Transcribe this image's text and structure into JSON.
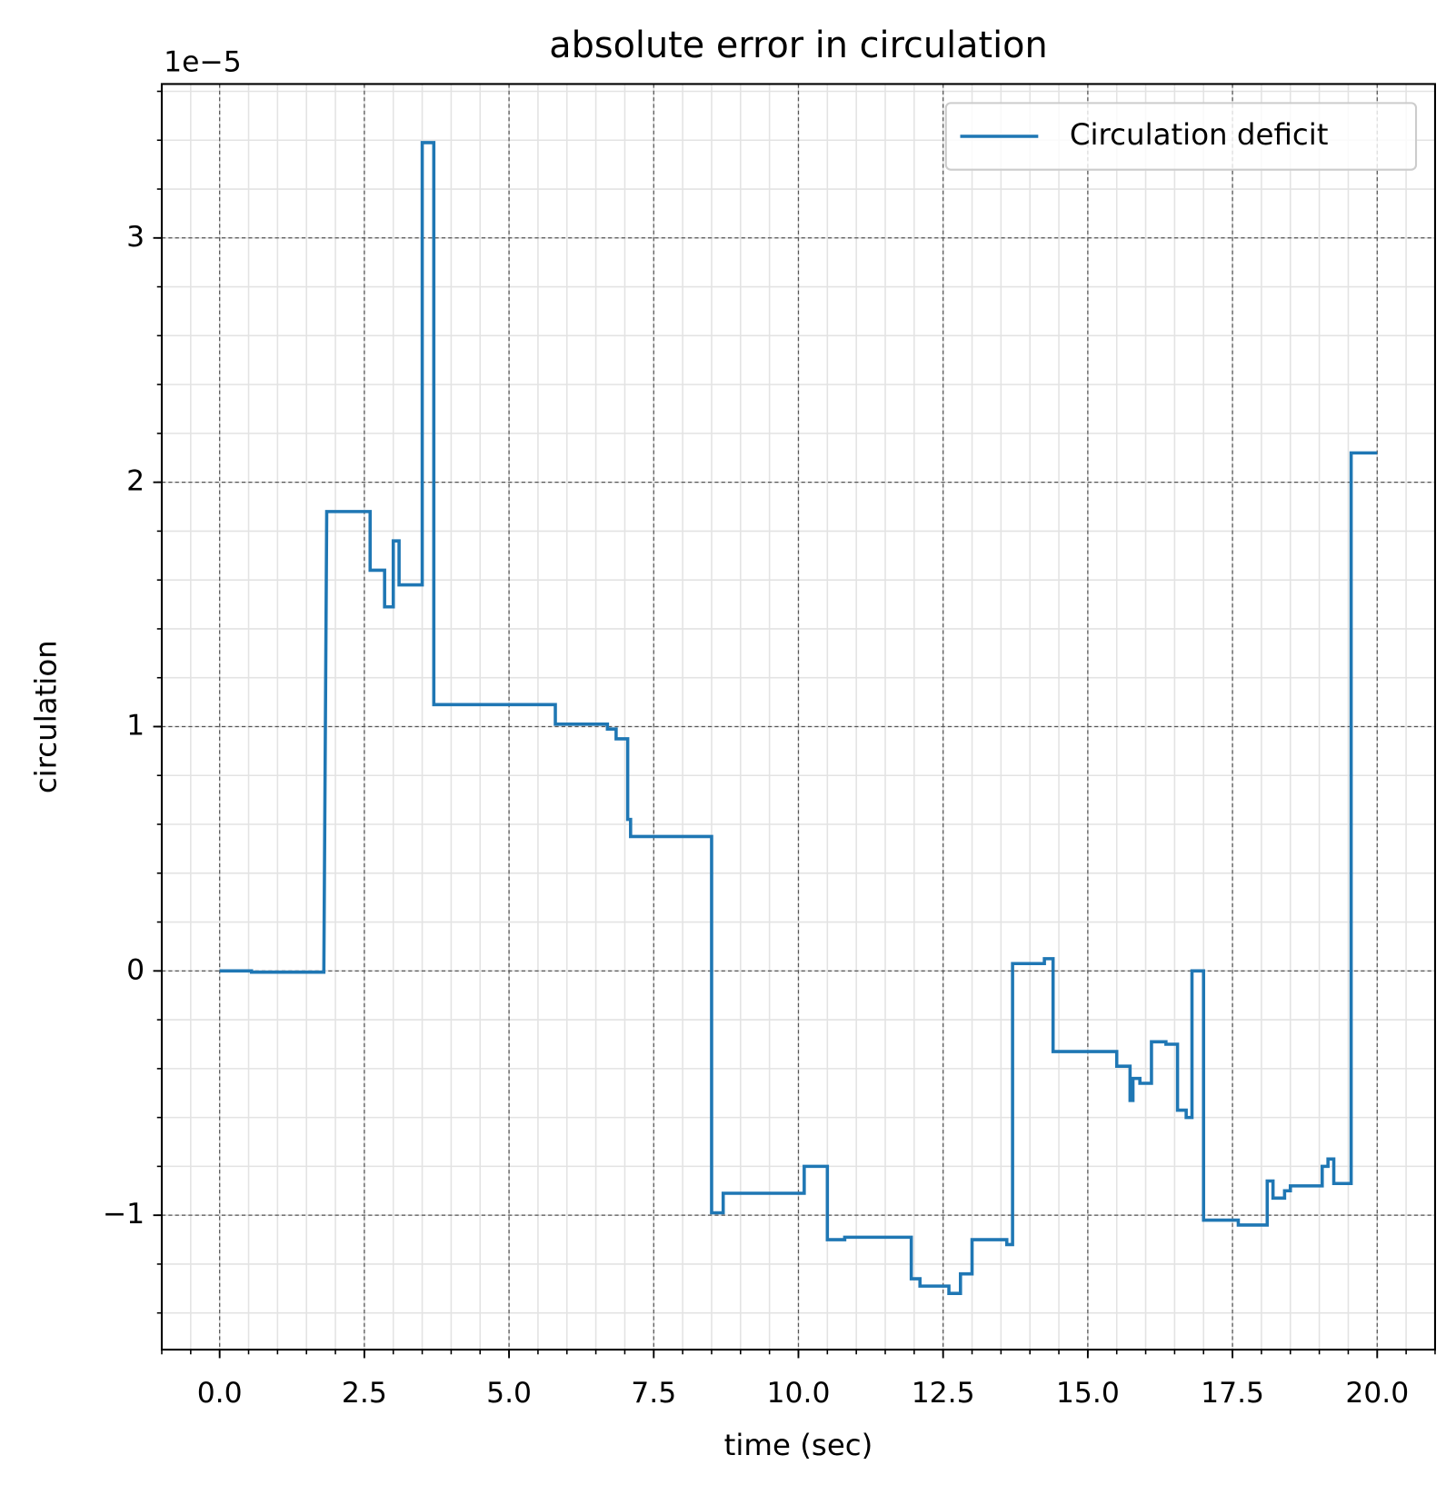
{
  "chart_data": {
    "type": "line",
    "title": "absolute error in circulation",
    "x_label": "time (sec)",
    "y_label": "circulation",
    "y_offset_label": "1e−5",
    "x": [
      0,
      0.55,
      0.55,
      1.8,
      1.85,
      2.6,
      2.6,
      2.85,
      2.85,
      3.0,
      3.0,
      3.1,
      3.1,
      3.5,
      3.5,
      3.7,
      3.7,
      5.8,
      5.8,
      6.7,
      6.7,
      6.85,
      6.85,
      7.05,
      7.05,
      7.1,
      7.1,
      8.5,
      8.5,
      8.7,
      8.7,
      10.1,
      10.1,
      10.5,
      10.5,
      10.8,
      10.8,
      11.95,
      11.95,
      12.1,
      12.1,
      12.6,
      12.6,
      12.8,
      12.8,
      13.0,
      13.0,
      13.6,
      13.6,
      13.7,
      13.7,
      14.25,
      14.25,
      14.4,
      14.4,
      15.5,
      15.5,
      15.73,
      15.73,
      15.78,
      15.78,
      15.9,
      15.9,
      16.1,
      16.1,
      16.35,
      16.35,
      16.55,
      16.55,
      16.7,
      16.7,
      16.8,
      16.8,
      17.0,
      17.0,
      17.6,
      17.6,
      18.1,
      18.1,
      18.2,
      18.2,
      18.4,
      18.4,
      18.5,
      18.5,
      19.05,
      19.05,
      19.15,
      19.15,
      19.25,
      19.25,
      19.55,
      19.55,
      20.0
    ],
    "series": [
      {
        "name": "Circulation deficit",
        "color": "#1f77b4",
        "values": [
          0,
          0,
          -0.005,
          -0.005,
          1.88,
          1.88,
          1.64,
          1.64,
          1.49,
          1.49,
          1.76,
          1.76,
          1.58,
          1.58,
          3.39,
          3.39,
          1.09,
          1.09,
          1.01,
          1.01,
          0.99,
          0.99,
          0.95,
          0.95,
          0.62,
          0.62,
          0.55,
          0.55,
          -0.99,
          -0.99,
          -0.91,
          -0.91,
          -0.8,
          -0.8,
          -1.1,
          -1.1,
          -1.09,
          -1.09,
          -1.26,
          -1.26,
          -1.29,
          -1.29,
          -1.32,
          -1.32,
          -1.24,
          -1.24,
          -1.1,
          -1.1,
          -1.12,
          -1.12,
          0.03,
          0.03,
          0.05,
          0.05,
          -0.33,
          -0.33,
          -0.39,
          -0.39,
          -0.53,
          -0.53,
          -0.44,
          -0.44,
          -0.46,
          -0.46,
          -0.29,
          -0.29,
          -0.3,
          -0.3,
          -0.57,
          -0.57,
          -0.6,
          -0.6,
          0.0,
          0.0,
          -1.02,
          -1.02,
          -1.04,
          -1.04,
          -0.86,
          -0.86,
          -0.93,
          -0.93,
          -0.9,
          -0.9,
          -0.88,
          -0.88,
          -0.8,
          -0.8,
          -0.77,
          -0.77,
          -0.87,
          -0.87,
          2.12,
          2.12
        ]
      }
    ],
    "xlim": [
      -1.0,
      21.0
    ],
    "ylim": [
      -1.55,
      3.63
    ],
    "xticks": [
      {
        "value": 0,
        "label": "0.0"
      },
      2.5,
      {
        "value": 5,
        "label": "5.0"
      },
      7.5,
      {
        "value": 10,
        "label": "10.0"
      },
      12.5,
      {
        "value": 15,
        "label": "15.0"
      },
      17.5,
      {
        "value": 20,
        "label": "20.0"
      }
    ],
    "yticks": [
      {
        "value": -1,
        "label": "−1"
      },
      0,
      1,
      2,
      3
    ],
    "grid": true,
    "minor_grid": true,
    "legend": "upper right"
  }
}
